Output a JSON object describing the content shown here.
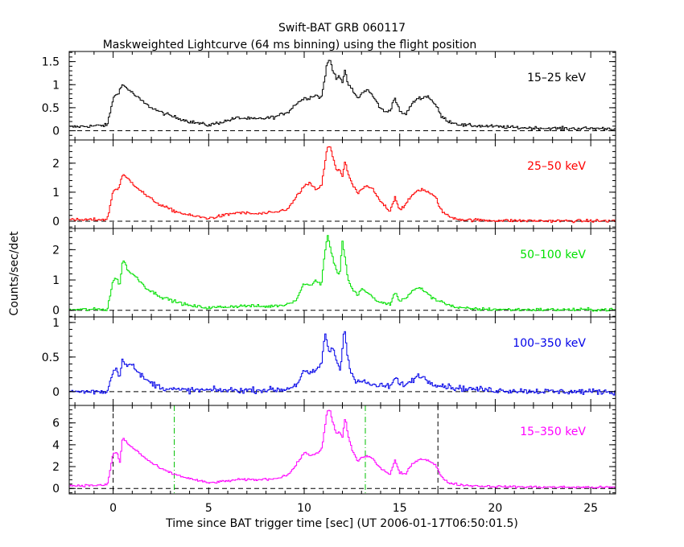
{
  "chart_data": {
    "type": "line",
    "title": "Swift-BAT GRB 060117",
    "subtitle": "Maskweighted Lightcurve (64 ms binning) using the flight position",
    "xlabel": "Time since BAT trigger time [sec] (UT 2006-01-17T06:50:01.5)",
    "ylabel": "Counts/sec/det",
    "xlim": [
      -2.3,
      26.3
    ],
    "x_ticks": [
      0,
      5,
      10,
      15,
      20,
      25
    ],
    "x_tick_labels": [
      "0",
      "5",
      "10",
      "15",
      "20",
      "25"
    ],
    "panels": [
      {
        "band": "15–25 keV",
        "color": "#000000",
        "ylim": [
          -0.2,
          1.72
        ],
        "y_ticks": [
          0,
          0.5,
          1,
          1.5
        ],
        "y_tick_labels": [
          "0",
          "0.5",
          "1",
          "1.5"
        ],
        "noise": 0.035,
        "series": {
          "x": [
            -2.3,
            -0.3,
            0.0,
            0.3,
            0.5,
            0.8,
            1.2,
            1.8,
            2.5,
            3.2,
            4.0,
            5.0,
            5.8,
            6.5,
            7.5,
            8.5,
            9.2,
            9.6,
            10.0,
            10.3,
            10.6,
            10.9,
            11.0,
            11.2,
            11.35,
            11.5,
            11.7,
            11.85,
            12.0,
            12.15,
            12.3,
            12.5,
            12.8,
            13.0,
            13.3,
            13.6,
            13.9,
            14.2,
            14.5,
            14.75,
            15.0,
            15.3,
            15.6,
            15.9,
            16.2,
            16.5,
            16.9,
            17.2,
            17.6,
            18.3,
            19.5,
            21.0,
            23.0,
            26.3
          ],
          "y": [
            0.08,
            0.12,
            0.7,
            0.85,
            1.0,
            0.9,
            0.75,
            0.55,
            0.4,
            0.3,
            0.2,
            0.12,
            0.2,
            0.28,
            0.25,
            0.3,
            0.42,
            0.6,
            0.7,
            0.72,
            0.78,
            0.7,
            0.95,
            1.45,
            1.55,
            1.3,
            1.15,
            1.2,
            1.05,
            1.3,
            1.0,
            0.9,
            0.7,
            0.8,
            0.9,
            0.75,
            0.55,
            0.4,
            0.45,
            0.72,
            0.42,
            0.35,
            0.55,
            0.7,
            0.72,
            0.75,
            0.55,
            0.3,
            0.2,
            0.12,
            0.1,
            0.07,
            0.05,
            0.05
          ]
        }
      },
      {
        "band": "25–50 keV",
        "color": "#ff0000",
        "ylim": [
          -0.25,
          2.8
        ],
        "y_ticks": [
          0,
          1,
          2
        ],
        "y_tick_labels": [
          "0",
          "1",
          "2"
        ],
        "noise": 0.05,
        "series": {
          "x": [
            -2.3,
            -0.3,
            0.0,
            0.3,
            0.5,
            0.8,
            1.2,
            1.8,
            2.5,
            3.2,
            4.0,
            5.0,
            5.8,
            6.5,
            7.5,
            8.5,
            9.2,
            9.6,
            10.0,
            10.3,
            10.6,
            10.9,
            11.0,
            11.2,
            11.35,
            11.5,
            11.7,
            11.85,
            12.0,
            12.15,
            12.3,
            12.5,
            12.8,
            13.0,
            13.3,
            13.6,
            13.9,
            14.2,
            14.5,
            14.75,
            15.0,
            15.3,
            15.6,
            15.9,
            16.2,
            16.5,
            16.9,
            17.2,
            17.6,
            18.3,
            19.5,
            21.0,
            23.0,
            26.3
          ],
          "y": [
            0.04,
            0.06,
            1.05,
            1.15,
            1.6,
            1.45,
            1.2,
            0.85,
            0.55,
            0.35,
            0.2,
            0.1,
            0.2,
            0.3,
            0.25,
            0.3,
            0.45,
            0.85,
            1.2,
            1.3,
            1.1,
            1.2,
            1.6,
            2.5,
            2.6,
            2.2,
            1.75,
            1.8,
            1.55,
            2.1,
            1.6,
            1.3,
            0.95,
            1.1,
            1.2,
            1.1,
            0.75,
            0.55,
            0.35,
            0.85,
            0.4,
            0.55,
            0.85,
            1.05,
            1.1,
            1.0,
            0.8,
            0.35,
            0.15,
            0.05,
            0.03,
            0.02,
            0.01,
            0.01
          ]
        }
      },
      {
        "band": "50–100 keV",
        "color": "#00e000",
        "ylim": [
          -0.22,
          2.7
        ],
        "y_ticks": [
          0,
          1,
          2
        ],
        "y_tick_labels": [
          "0",
          "1",
          "2"
        ],
        "noise": 0.05,
        "series": {
          "x": [
            -2.3,
            -0.3,
            0.0,
            0.2,
            0.35,
            0.5,
            0.8,
            1.2,
            1.8,
            2.5,
            3.2,
            4.0,
            5.0,
            6.0,
            7.0,
            8.0,
            9.0,
            9.6,
            10.0,
            10.3,
            10.6,
            10.9,
            11.1,
            11.25,
            11.4,
            11.6,
            11.85,
            12.0,
            12.15,
            12.3,
            12.5,
            12.8,
            13.0,
            13.3,
            13.6,
            14.0,
            14.5,
            14.75,
            15.0,
            15.3,
            15.6,
            16.0,
            16.4,
            16.8,
            17.2,
            17.5,
            18.0,
            19.0,
            21.0,
            23.0,
            26.3
          ],
          "y": [
            0.02,
            0.03,
            1.0,
            1.05,
            0.8,
            1.7,
            1.3,
            1.1,
            0.7,
            0.45,
            0.3,
            0.15,
            0.08,
            0.12,
            0.15,
            0.12,
            0.18,
            0.35,
            0.9,
            0.8,
            1.0,
            0.85,
            2.0,
            2.5,
            1.95,
            1.5,
            1.1,
            2.3,
            1.7,
            1.0,
            0.7,
            0.5,
            0.7,
            0.6,
            0.4,
            0.25,
            0.2,
            0.6,
            0.3,
            0.4,
            0.6,
            0.75,
            0.6,
            0.35,
            0.3,
            0.2,
            0.08,
            0.04,
            0.02,
            0.02,
            0.02
          ]
        }
      },
      {
        "band": "100–350 keV",
        "color": "#0000e8",
        "ylim": [
          -0.2,
          1.08
        ],
        "y_ticks": [
          0,
          0.5,
          1
        ],
        "y_tick_labels": [
          "0",
          "0.5",
          "1"
        ],
        "noise": 0.04,
        "series": {
          "x": [
            -2.3,
            -0.3,
            0.0,
            0.2,
            0.35,
            0.5,
            0.7,
            0.9,
            1.2,
            1.8,
            2.5,
            3.5,
            5.0,
            7.0,
            9.0,
            9.6,
            10.0,
            10.3,
            10.6,
            10.9,
            11.1,
            11.3,
            11.5,
            11.7,
            11.9,
            12.1,
            12.25,
            12.45,
            12.7,
            13.0,
            13.5,
            14.0,
            14.5,
            14.8,
            15.0,
            15.5,
            16.0,
            16.5,
            17.0,
            18.0,
            20.0,
            23.0,
            26.3
          ],
          "y": [
            0.0,
            0.0,
            0.3,
            0.35,
            0.2,
            0.5,
            0.35,
            0.45,
            0.3,
            0.15,
            0.06,
            0.02,
            0.02,
            0.02,
            0.03,
            0.1,
            0.3,
            0.25,
            0.3,
            0.4,
            0.85,
            0.55,
            0.65,
            0.45,
            0.3,
            0.95,
            0.55,
            0.3,
            0.15,
            0.15,
            0.1,
            0.08,
            0.08,
            0.2,
            0.1,
            0.12,
            0.25,
            0.15,
            0.1,
            0.05,
            0.02,
            0.0,
            0.0
          ]
        }
      },
      {
        "band": "15–350 keV",
        "color": "#ff00ff",
        "ylim": [
          -0.5,
          7.6
        ],
        "y_ticks": [
          0,
          2,
          4,
          6
        ],
        "y_tick_labels": [
          "0",
          "2",
          "4",
          "6"
        ],
        "noise": 0.1,
        "series": {
          "x": [
            -2.3,
            -0.3,
            0.0,
            0.2,
            0.35,
            0.5,
            0.8,
            1.2,
            1.8,
            2.5,
            3.2,
            4.0,
            5.0,
            5.8,
            6.5,
            7.5,
            8.5,
            9.2,
            9.6,
            10.0,
            10.3,
            10.6,
            10.9,
            11.0,
            11.2,
            11.35,
            11.5,
            11.7,
            11.85,
            12.0,
            12.15,
            12.3,
            12.5,
            12.8,
            13.0,
            13.3,
            13.6,
            13.9,
            14.2,
            14.5,
            14.75,
            15.0,
            15.3,
            15.6,
            15.9,
            16.2,
            16.5,
            16.9,
            17.2,
            17.6,
            18.3,
            19.5,
            21.0,
            23.0,
            26.3
          ],
          "y": [
            0.25,
            0.3,
            3.2,
            3.3,
            2.3,
            4.7,
            4.0,
            3.5,
            2.6,
            1.8,
            1.3,
            0.9,
            0.5,
            0.65,
            0.8,
            0.8,
            0.9,
            1.3,
            2.2,
            3.3,
            3.0,
            3.2,
            3.5,
            4.5,
            7.0,
            7.2,
            6.0,
            5.0,
            5.2,
            4.6,
            6.6,
            4.8,
            3.6,
            2.5,
            2.8,
            3.0,
            2.7,
            2.0,
            1.6,
            1.3,
            2.6,
            1.4,
            1.3,
            2.1,
            2.6,
            2.7,
            2.6,
            2.1,
            1.0,
            0.5,
            0.3,
            0.2,
            0.15,
            0.12,
            0.1
          ]
        },
        "markers": [
          {
            "x": 0.0,
            "style": "dashed",
            "color": "#000000"
          },
          {
            "x": 3.2,
            "style": "dashdot",
            "color": "#00c000"
          },
          {
            "x": 13.2,
            "style": "dashdot",
            "color": "#00c000"
          },
          {
            "x": 17.0,
            "style": "dashed",
            "color": "#000000"
          }
        ]
      }
    ]
  }
}
